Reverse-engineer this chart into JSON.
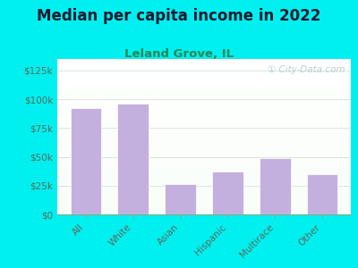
{
  "title": "Median per capita income in 2022",
  "subtitle": "Leland Grove, IL",
  "categories": [
    "All",
    "White",
    "Asian",
    "Hispanic",
    "Multirace",
    "Other"
  ],
  "values": [
    92000,
    96000,
    26000,
    37000,
    49000,
    35000
  ],
  "bar_color": "#c4b0de",
  "bar_edge_color": "#ffffff",
  "background_outer": "#00f0f0",
  "title_color": "#1a1a2e",
  "subtitle_color": "#228855",
  "tick_color": "#5a6a5a",
  "ylabel_ticks": [
    "$0",
    "$25k",
    "$50k",
    "$75k",
    "$100k",
    "$125k"
  ],
  "ytick_values": [
    0,
    25000,
    50000,
    75000,
    100000,
    125000
  ],
  "ylim": [
    0,
    135000
  ],
  "watermark": "① City-Data.com"
}
